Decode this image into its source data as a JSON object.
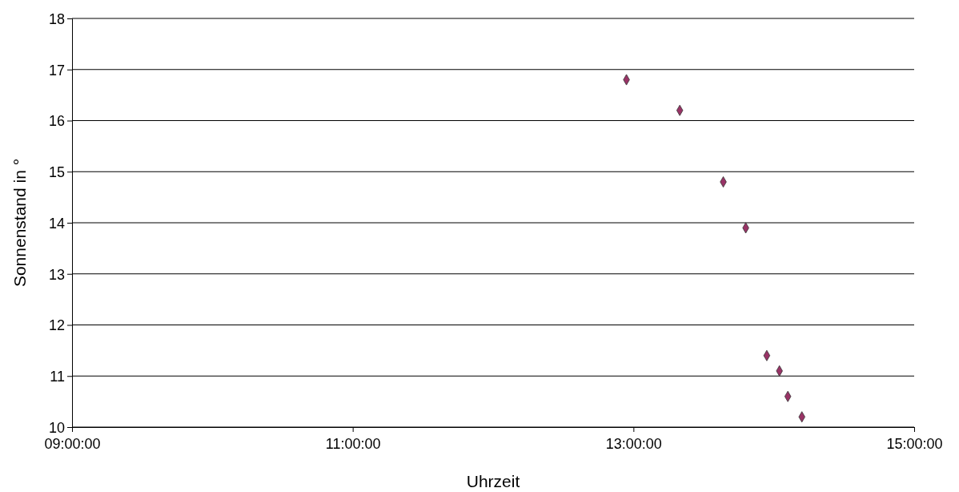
{
  "chart_data": {
    "type": "scatter",
    "xlabel": "Uhrzeit",
    "ylabel": "Sonnenstand in °",
    "x": [
      12.95,
      13.33,
      13.64,
      13.8,
      13.95,
      14.04,
      14.1,
      14.2
    ],
    "series": [
      {
        "color": "#993366",
        "values": [
          16.8,
          16.2,
          14.8,
          13.9,
          11.4,
          11.1,
          10.6,
          10.2
        ]
      }
    ],
    "xlim": [
      9,
      15
    ],
    "xticks": [
      {
        "value": 9,
        "label": "09:00:00"
      },
      {
        "value": 11,
        "label": "11:00:00"
      },
      {
        "value": 13,
        "label": "13:00:00"
      },
      {
        "value": 15,
        "label": "15:00:00"
      }
    ],
    "ylim": [
      10,
      18
    ],
    "yticks": [
      10,
      11,
      12,
      13,
      14,
      15,
      16,
      17,
      18
    ],
    "grid": "y",
    "marker": "diamond"
  }
}
